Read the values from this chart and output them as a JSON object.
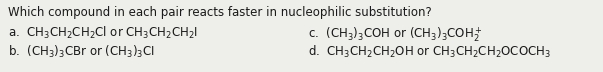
{
  "title": "Which compound in each pair reacts faster in nucleophilic substitution?",
  "bg_color": "#eeeeea",
  "text_color": "#1a1a1a",
  "font_size_title": 8.5,
  "font_size_body": 8.5,
  "figwidth": 6.03,
  "figheight": 0.72,
  "dpi": 100
}
